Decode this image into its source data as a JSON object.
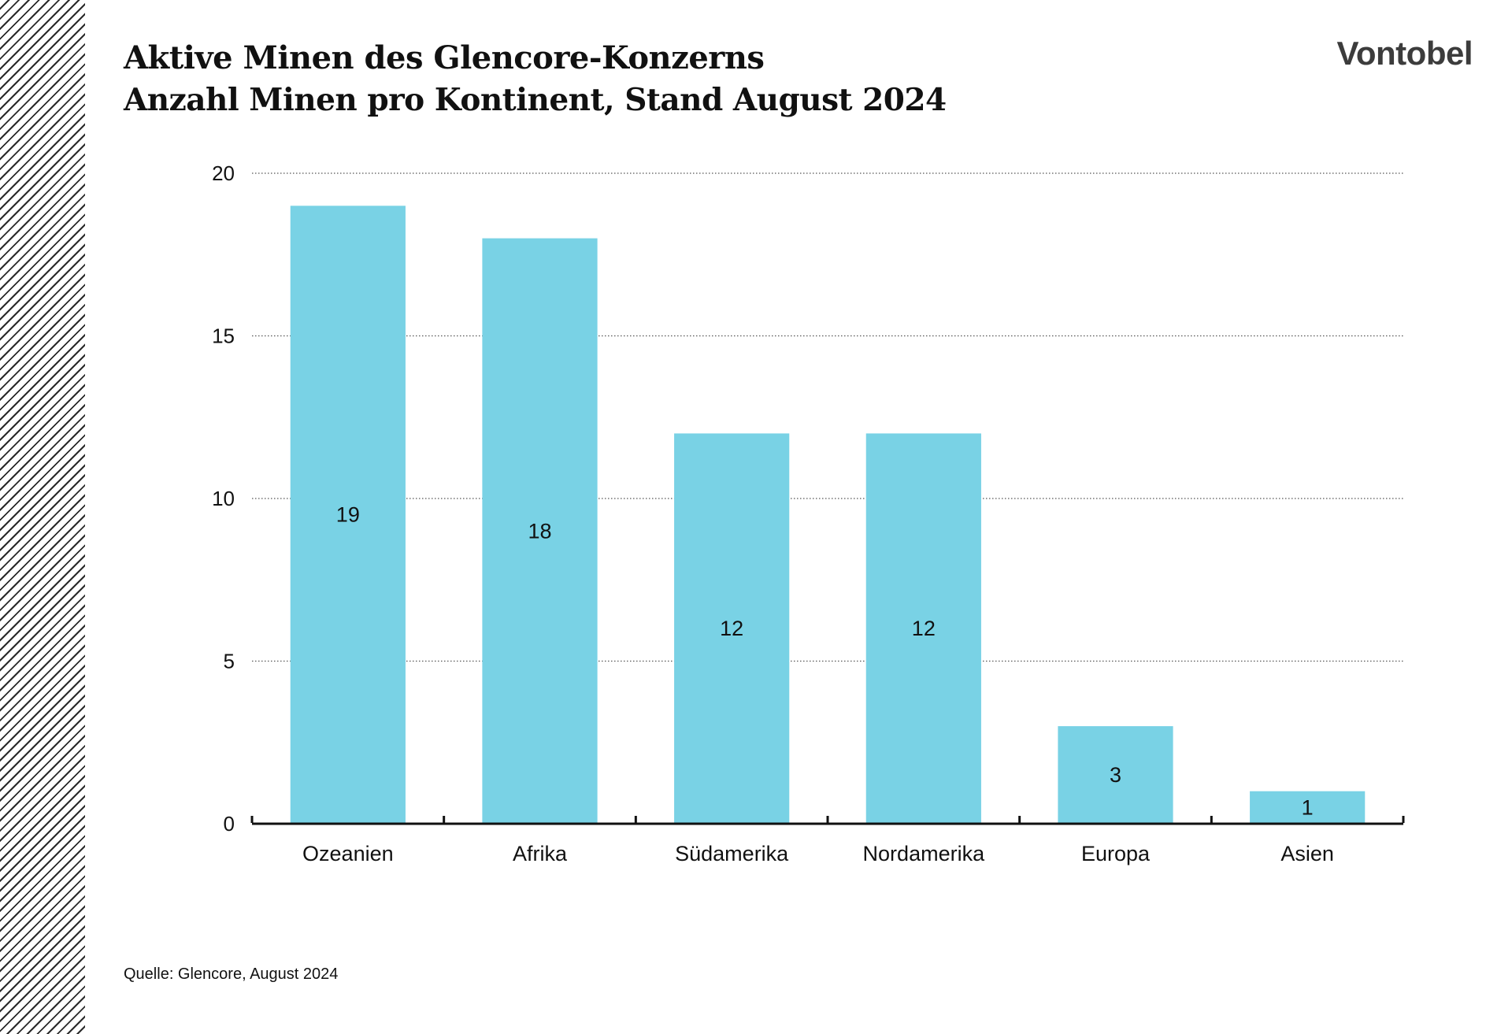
{
  "header": {
    "title": "Aktive Minen des Glencore-Konzerns",
    "subtitle": "Anzahl Minen pro Kontinent, Stand August 2024",
    "logo_text": "Vontobel"
  },
  "footer": {
    "source": "Quelle:  Glencore,  August 2024"
  },
  "colors": {
    "bar": "#79D2E5",
    "axis": "#111111",
    "grid": "#555555",
    "text": "#111111",
    "logo": "#3c3c3c"
  },
  "chart_data": {
    "type": "bar",
    "title": "Aktive Minen des Glencore-Konzerns",
    "subtitle": "Anzahl Minen pro Kontinent, Stand August 2024",
    "xlabel": "",
    "ylabel": "",
    "categories": [
      "Ozeanien",
      "Afrika",
      "Südamerika",
      "Nordamerika",
      "Europa",
      "Asien"
    ],
    "values": [
      19,
      18,
      12,
      12,
      3,
      1
    ],
    "data_labels": [
      "19",
      "18",
      "12",
      "12",
      "3",
      "1"
    ],
    "ylim": [
      0,
      20
    ],
    "yticks": [
      0,
      5,
      10,
      15,
      20
    ],
    "ytick_labels": [
      "0",
      "5",
      "10",
      "15",
      "20"
    ],
    "grid": "dotted horizontal",
    "legend": "none"
  }
}
